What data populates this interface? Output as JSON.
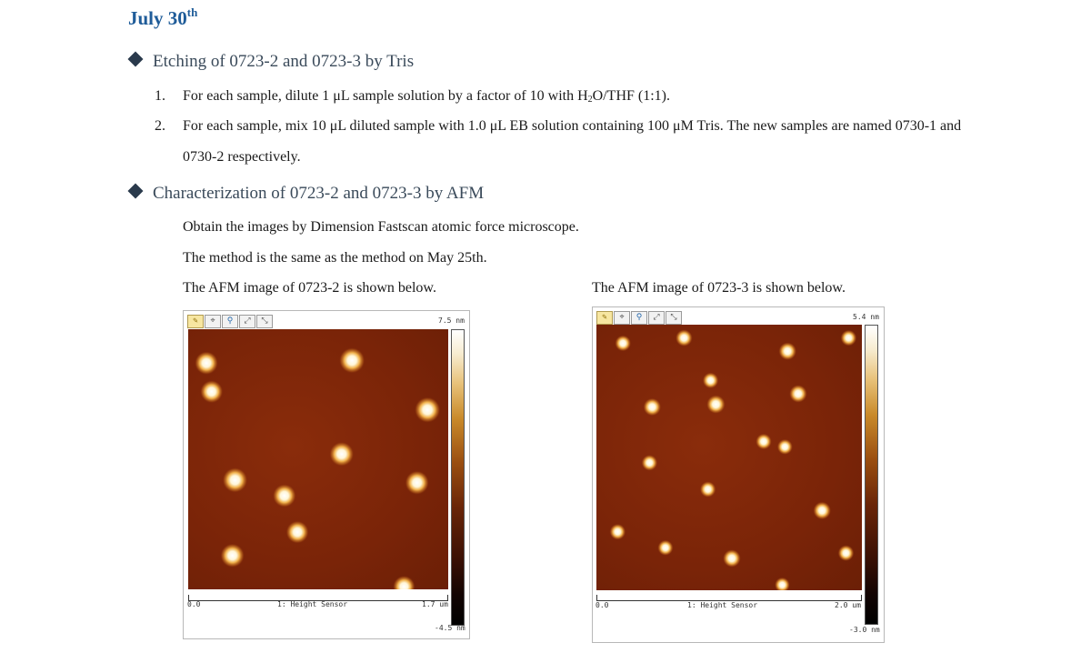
{
  "title": {
    "text": "July 30",
    "sup": "th"
  },
  "sections": [
    {
      "heading": "Etching of 0723-2 and 0723-3 by Tris"
    },
    {
      "heading": "Characterization of 0723-2 and 0723-3 by AFM"
    }
  ],
  "steps": [
    {
      "number": "1.",
      "text_a": "For each sample, dilute 1 μL sample solution by a factor of 10 with H",
      "sub": "2",
      "text_b": "O/THF (1:1)."
    },
    {
      "number": "2.",
      "line1": "For each sample, mix 10 μL diluted sample with 1.0 μL EB solution containing 100 μM Tris. The new samples are named 0730-1 and",
      "line2": "0730-2 respectively."
    }
  ],
  "afm_text": {
    "line1": "Obtain the images by Dimension Fastscan atomic force microscope.",
    "line2": "The method is the same as the method on May 25th."
  },
  "images": [
    {
      "caption": "The AFM image of 0723-2 is shown below.",
      "color_max": "7.5 nm",
      "color_min": "-4.5 nm",
      "scale_start": "0.0",
      "scale_end": "1.7 um",
      "channel": "1: Height Sensor",
      "particles": [
        [
          0.07,
          0.13,
          0.8
        ],
        [
          0.09,
          0.24,
          0.75
        ],
        [
          0.63,
          0.12,
          1.0
        ],
        [
          0.92,
          0.31,
          1.0
        ],
        [
          0.59,
          0.48,
          0.9
        ],
        [
          0.88,
          0.59,
          0.85
        ],
        [
          0.18,
          0.58,
          0.95
        ],
        [
          0.37,
          0.64,
          0.8
        ],
        [
          0.42,
          0.78,
          0.75
        ],
        [
          0.17,
          0.87,
          0.85
        ],
        [
          0.83,
          0.99,
          0.7
        ]
      ]
    },
    {
      "caption": "The AFM image of 0723-3 is shown below.",
      "color_max": "5.4 nm",
      "color_min": "-3.0 nm",
      "scale_start": "0.0",
      "scale_end": "2.0 um",
      "channel": "1: Height Sensor",
      "particles": [
        [
          0.1,
          0.07,
          0.6
        ],
        [
          0.33,
          0.05,
          0.7
        ],
        [
          0.72,
          0.1,
          0.8
        ],
        [
          0.95,
          0.05,
          0.6
        ],
        [
          0.43,
          0.21,
          0.6
        ],
        [
          0.76,
          0.26,
          0.8
        ],
        [
          0.21,
          0.31,
          0.8
        ],
        [
          0.45,
          0.3,
          0.9
        ],
        [
          0.63,
          0.44,
          0.6
        ],
        [
          0.71,
          0.46,
          0.55
        ],
        [
          0.2,
          0.52,
          0.6
        ],
        [
          0.42,
          0.62,
          0.6
        ],
        [
          0.85,
          0.7,
          0.8
        ],
        [
          0.08,
          0.78,
          0.6
        ],
        [
          0.26,
          0.84,
          0.55
        ],
        [
          0.51,
          0.88,
          0.8
        ],
        [
          0.94,
          0.86,
          0.6
        ],
        [
          0.7,
          0.98,
          0.5
        ]
      ]
    }
  ]
}
